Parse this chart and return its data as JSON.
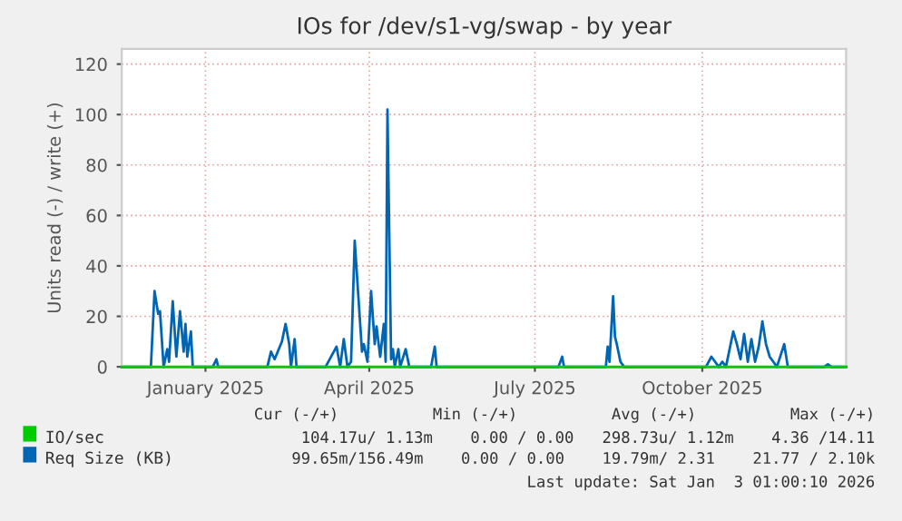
{
  "chart_data": {
    "type": "line",
    "title": "IOs for /dev/s1-vg/swap - by year",
    "ylabel": "Units read (-) / write (+)",
    "xlim": [
      "2024-12-01",
      "2026-01-03"
    ],
    "ylim": [
      0,
      126
    ],
    "yticks": [
      0,
      20,
      40,
      60,
      80,
      100,
      120
    ],
    "xticks": [
      {
        "value": "2025-01-16",
        "label": "January 2025"
      },
      {
        "value": "2025-04-16",
        "label": "April 2025"
      },
      {
        "value": "2025-07-16",
        "label": "July 2025"
      },
      {
        "value": "2025-10-16",
        "label": "October 2025"
      }
    ],
    "grid": true,
    "legend": "bottom left",
    "series": [
      {
        "name": "IO/sec",
        "color": "#00cc00",
        "x": [
          "2024-12-01",
          "2026-01-03"
        ],
        "values": [
          0,
          0
        ]
      },
      {
        "name": "Req Size (KB)",
        "color": "#0066b3",
        "x": [
          "2024-12-01",
          "2024-12-17",
          "2024-12-19",
          "2024-12-21",
          "2024-12-22",
          "2024-12-24",
          "2024-12-26",
          "2024-12-27",
          "2024-12-29",
          "2024-12-31",
          "2025-01-02",
          "2025-01-04",
          "2025-01-05",
          "2025-01-06",
          "2025-01-08",
          "2025-01-09",
          "2025-01-20",
          "2025-01-22",
          "2025-01-23",
          "2025-02-19",
          "2025-02-21",
          "2025-02-23",
          "2025-02-27",
          "2025-03-01",
          "2025-03-03",
          "2025-03-04",
          "2025-03-06",
          "2025-03-07",
          "2025-03-23",
          "2025-03-29",
          "2025-03-31",
          "2025-04-02",
          "2025-04-04",
          "2025-04-06",
          "2025-04-08",
          "2025-04-10",
          "2025-04-12",
          "2025-04-13",
          "2025-04-15",
          "2025-04-17",
          "2025-04-19",
          "2025-04-20",
          "2025-04-22",
          "2025-04-24",
          "2025-04-25",
          "2025-04-26",
          "2025-04-28",
          "2025-04-29",
          "2025-04-30",
          "2025-05-02",
          "2025-05-03",
          "2025-05-06",
          "2025-05-08",
          "2025-05-20",
          "2025-05-22",
          "2025-05-23",
          "2025-07-29",
          "2025-07-31",
          "2025-08-01",
          "2025-08-24",
          "2025-08-25",
          "2025-08-26",
          "2025-08-28",
          "2025-08-29",
          "2025-08-30",
          "2025-09-01",
          "2025-09-03",
          "2025-10-18",
          "2025-10-21",
          "2025-10-23",
          "2025-10-25",
          "2025-10-27",
          "2025-10-29",
          "2025-11-02",
          "2025-11-04",
          "2025-11-06",
          "2025-11-08",
          "2025-11-10",
          "2025-11-12",
          "2025-11-14",
          "2025-11-16",
          "2025-11-18",
          "2025-11-20",
          "2025-11-22",
          "2025-11-24",
          "2025-11-26",
          "2025-11-30",
          "2025-12-02",
          "2025-12-22",
          "2025-12-24",
          "2025-12-26",
          "2026-01-03"
        ],
        "values": [
          0,
          0,
          30,
          21,
          22,
          0,
          7,
          2,
          26,
          4,
          22,
          6,
          17,
          4,
          14,
          0,
          0,
          3,
          0,
          0,
          6,
          3,
          10,
          17,
          9,
          0,
          11,
          0,
          0,
          8,
          0,
          11,
          0,
          2,
          50,
          28,
          6,
          9,
          2,
          30,
          9,
          16,
          4,
          17,
          2,
          102,
          3,
          7,
          0,
          7,
          0,
          7,
          0,
          0,
          8,
          0,
          0,
          4,
          0,
          0,
          8,
          2,
          28,
          12,
          9,
          2,
          0,
          0,
          4,
          2,
          0,
          2,
          0,
          14,
          9,
          3,
          13,
          2,
          11,
          2,
          8,
          18,
          9,
          4,
          2,
          0,
          9,
          0,
          0,
          1,
          0,
          0
        ]
      }
    ],
    "annotations": [
      "Cur (-/+)          Min (-/+)          Avg (-/+)          Max (-/+)",
      "104.17u/ 1.13m    0.00 / 0.00   298.73u/ 1.12m    4.36 /14.11",
      "99.65m/156.49m    0.00 / 0.00    19.79m/ 2.31    21.77 / 2.10k",
      "Last update: Sat Jan  3 01:00:10 2026"
    ]
  }
}
